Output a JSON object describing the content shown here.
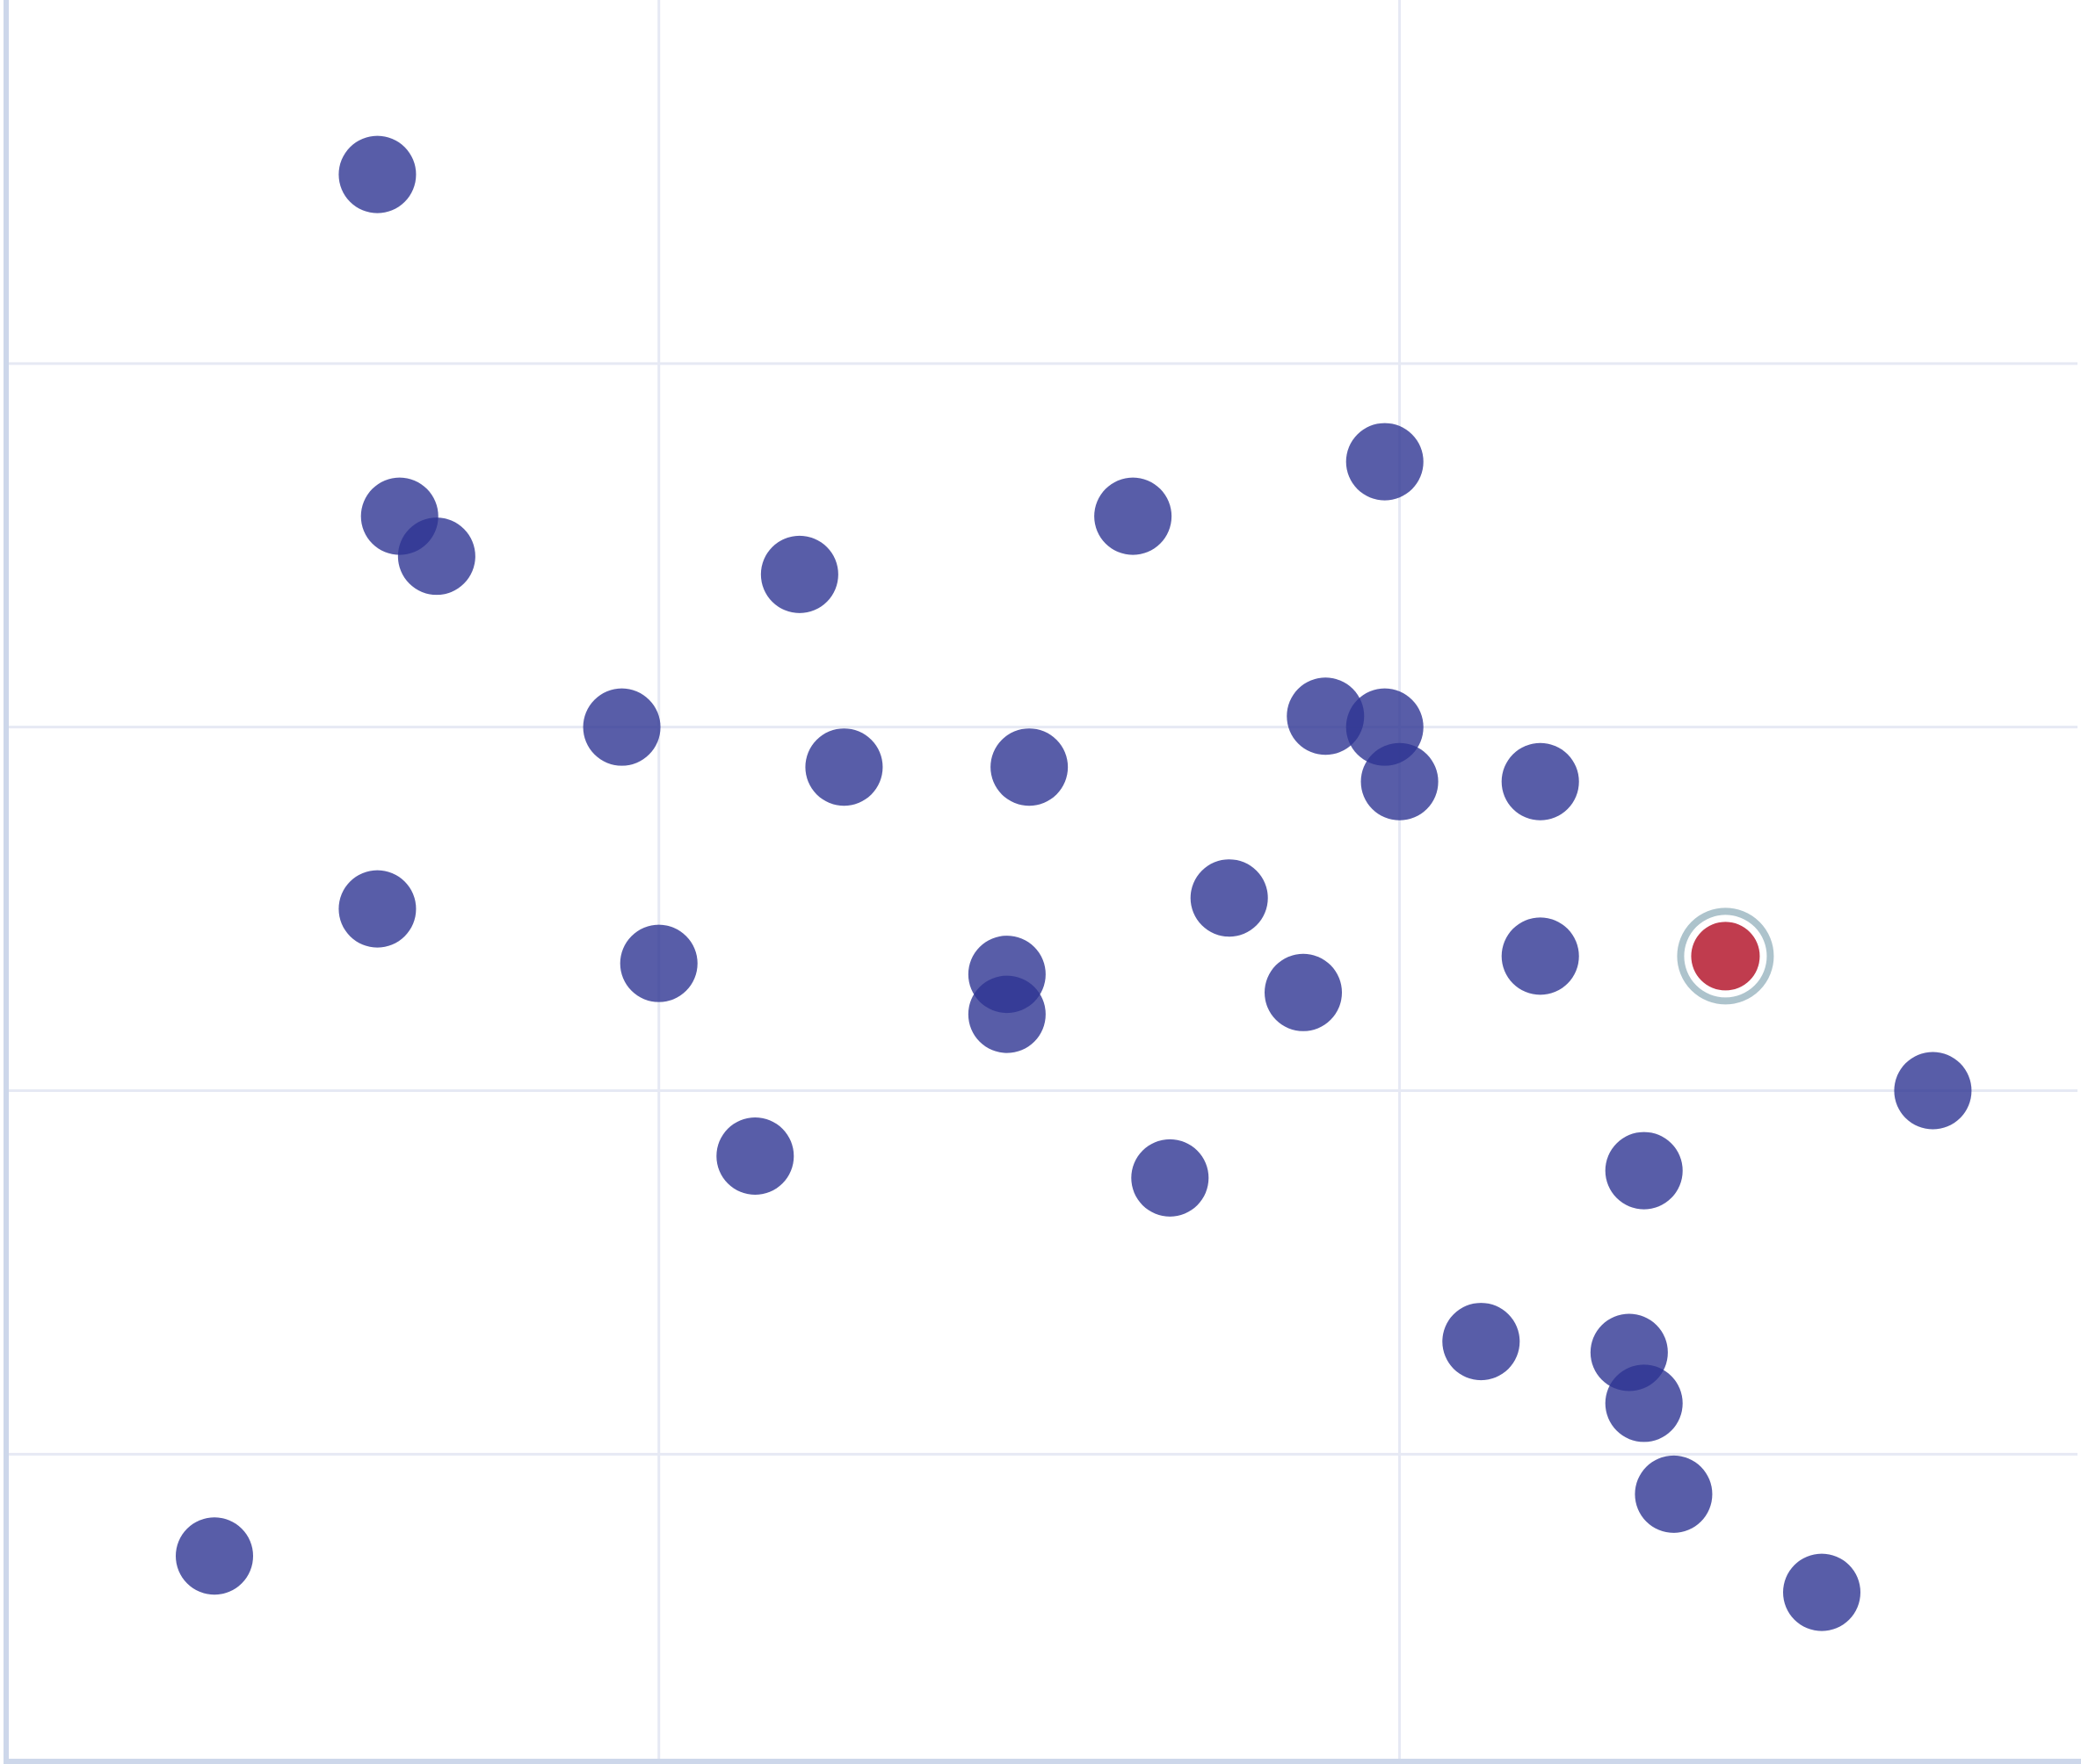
{
  "chart_data": {
    "type": "scatter",
    "title": "",
    "xlabel": "",
    "ylabel": "",
    "xlim": [
      0.12,
      2.92
    ],
    "ylim": [
      0.16,
      5.0
    ],
    "x_gridlines": [
      1,
      2
    ],
    "y_gridlines": [
      1,
      2,
      3,
      4
    ],
    "grid": true,
    "legend": "none",
    "colors": {
      "point": "#2e3592",
      "highlight": "#c03c4e",
      "highlight_ring": "#adc3cc",
      "grid": "#e6e9f4",
      "axis": "#cdd7ea"
    },
    "points": [
      {
        "x": 0.62,
        "y": 4.52
      },
      {
        "x": 0.65,
        "y": 3.58
      },
      {
        "x": 0.7,
        "y": 3.47
      },
      {
        "x": 1.19,
        "y": 3.42
      },
      {
        "x": 1.64,
        "y": 3.58
      },
      {
        "x": 1.98,
        "y": 3.73
      },
      {
        "x": 0.95,
        "y": 3.0
      },
      {
        "x": 1.25,
        "y": 2.89
      },
      {
        "x": 1.5,
        "y": 2.89
      },
      {
        "x": 1.9,
        "y": 3.03
      },
      {
        "x": 1.98,
        "y": 3.0
      },
      {
        "x": 2.0,
        "y": 2.85
      },
      {
        "x": 2.19,
        "y": 2.85
      },
      {
        "x": 0.62,
        "y": 2.5
      },
      {
        "x": 1.0,
        "y": 2.35
      },
      {
        "x": 1.47,
        "y": 2.32
      },
      {
        "x": 1.47,
        "y": 2.21
      },
      {
        "x": 1.77,
        "y": 2.53
      },
      {
        "x": 1.87,
        "y": 2.27
      },
      {
        "x": 2.19,
        "y": 2.37
      },
      {
        "x": 2.72,
        "y": 2.0
      },
      {
        "x": 2.33,
        "y": 1.78
      },
      {
        "x": 1.13,
        "y": 1.82
      },
      {
        "x": 1.69,
        "y": 1.76
      },
      {
        "x": 2.11,
        "y": 1.31
      },
      {
        "x": 2.31,
        "y": 1.28
      },
      {
        "x": 2.33,
        "y": 1.14
      },
      {
        "x": 2.37,
        "y": 0.89
      },
      {
        "x": 0.4,
        "y": 0.72
      },
      {
        "x": 2.57,
        "y": 0.62
      }
    ],
    "highlighted_point": {
      "x": 2.44,
      "y": 2.37
    }
  }
}
